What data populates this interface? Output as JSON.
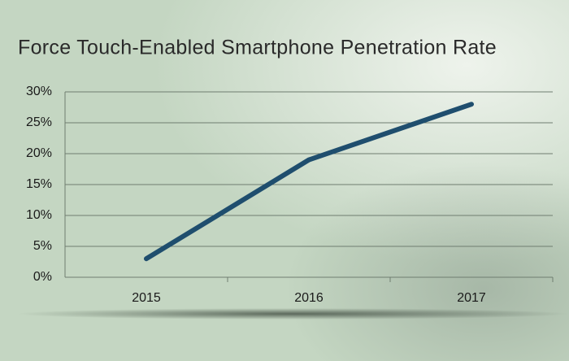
{
  "chart_data": {
    "type": "line",
    "title": "Force Touch-Enabled Smartphone Penetration Rate",
    "categories": [
      "2015",
      "2016",
      "2017"
    ],
    "values": [
      3,
      19,
      28
    ],
    "color": "#1f4e6e",
    "ylim": [
      0,
      30
    ],
    "yticks": [
      {
        "value": 0,
        "label": "0%"
      },
      {
        "value": 5,
        "label": "5%"
      },
      {
        "value": 10,
        "label": "10%"
      },
      {
        "value": 15,
        "label": "15%"
      },
      {
        "value": 20,
        "label": "20%"
      },
      {
        "value": 25,
        "label": "25%"
      },
      {
        "value": 30,
        "label": "30%"
      }
    ],
    "grid": true
  }
}
